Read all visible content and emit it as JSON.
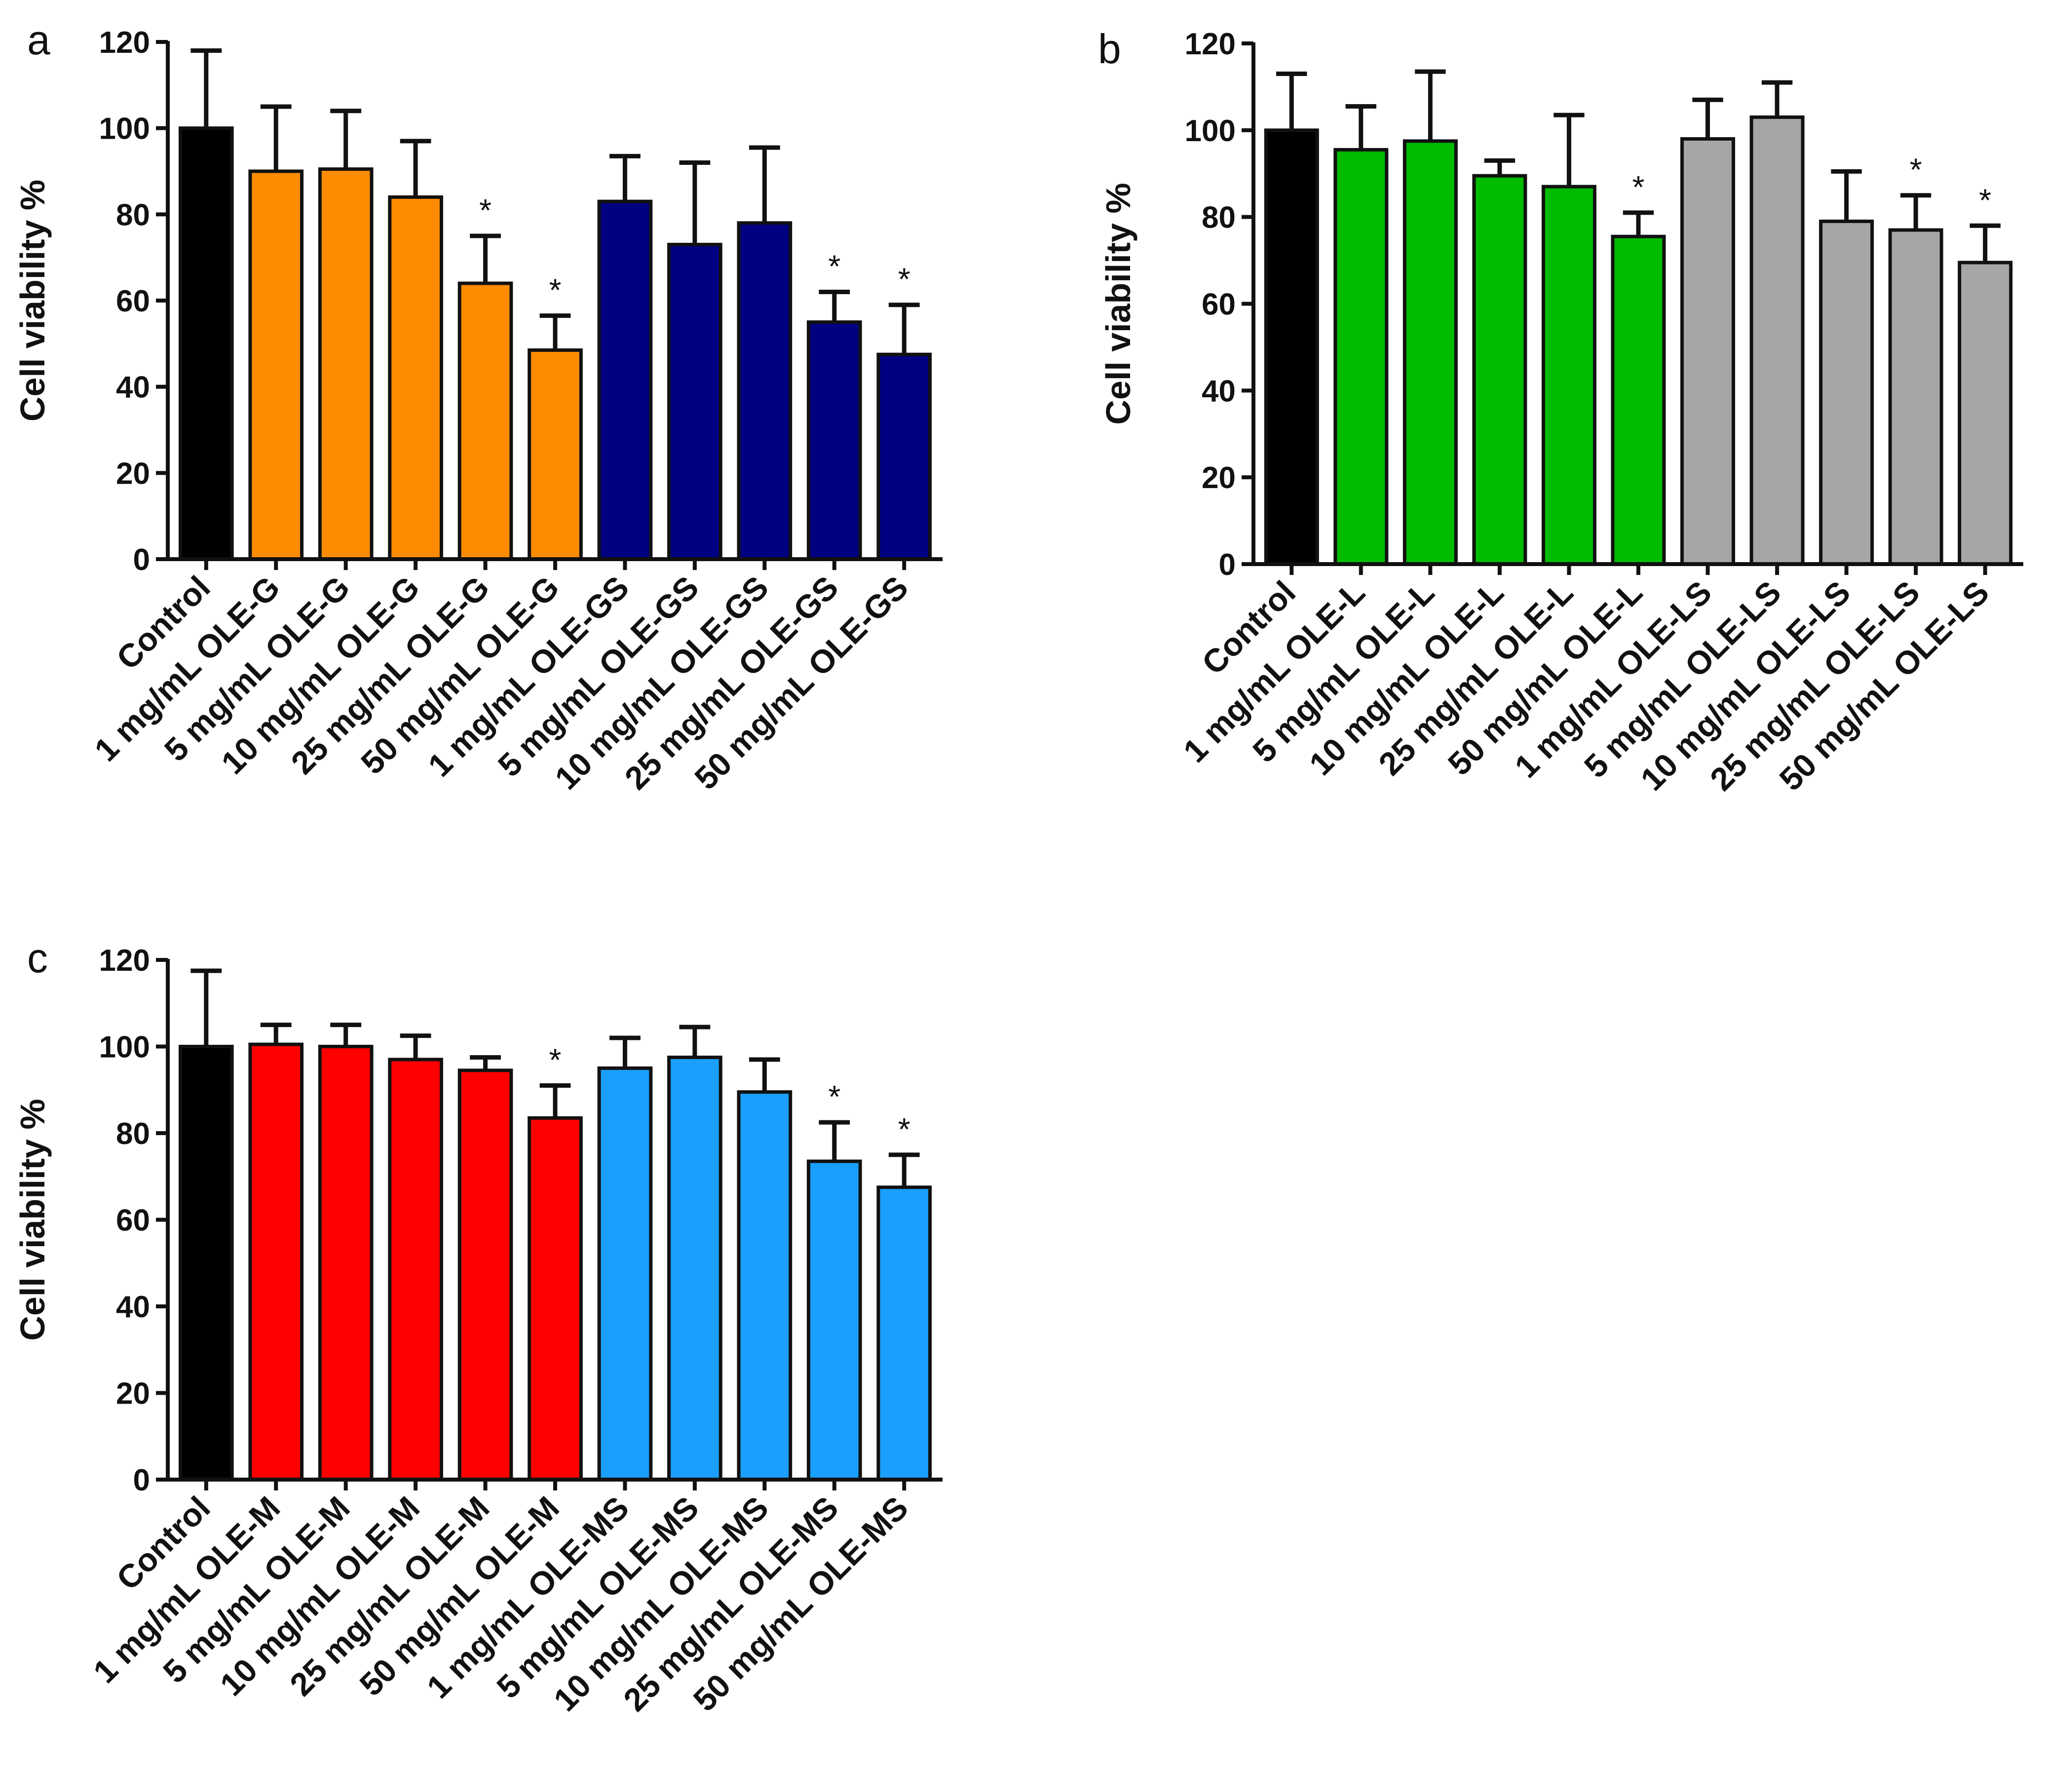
{
  "chart_data": [
    {
      "panel": "a",
      "type": "bar",
      "title": "",
      "xlabel": "",
      "ylabel": "Cell viability %",
      "ylim": [
        0,
        120
      ],
      "yticks": [
        "0",
        "20",
        "40",
        "60",
        "80",
        "100",
        "120"
      ],
      "grid": false,
      "categories": [
        "Control",
        "1 mg/mL OLE-G",
        "5 mg/mL OLE-G",
        "10 mg/mL OLE-G",
        "25 mg/mL OLE-G",
        "50 mg/mL OLE-G",
        "1 mg/mL OLE-GS",
        "5 mg/mL OLE-GS",
        "10 mg/mL OLE-GS",
        "25 mg/mL OLE-GS",
        "50 mg/mL OLE-GS"
      ],
      "values": [
        100,
        90,
        90.5,
        84,
        64,
        48.5,
        83,
        73,
        78,
        55,
        47.5
      ],
      "errors": [
        18,
        15,
        13.5,
        13,
        11,
        8,
        10.5,
        19,
        17.5,
        7,
        11.5
      ],
      "significant": [
        false,
        false,
        false,
        false,
        true,
        true,
        false,
        false,
        false,
        true,
        true
      ],
      "significance_marker": "*",
      "colors": [
        "#000000",
        "#ff8c00",
        "#ff8c00",
        "#ff8c00",
        "#ff8c00",
        "#ff8c00",
        "#000080",
        "#000080",
        "#000080",
        "#000080",
        "#000080"
      ]
    },
    {
      "panel": "b",
      "type": "bar",
      "title": "",
      "xlabel": "",
      "ylabel": "Cell viability %",
      "ylim": [
        0,
        120
      ],
      "yticks": [
        "0",
        "20",
        "40",
        "60",
        "80",
        "100",
        "120"
      ],
      "grid": false,
      "categories": [
        "Control",
        "1 mg/mL OLE-L",
        "5 mg/mL OLE-L",
        "10 mg/mL OLE-L",
        "25 mg/mL OLE-L",
        "50 mg/mL OLE-L",
        "1 mg/mL OLE-LS",
        "5 mg/mL OLE-LS",
        "10 mg/mL OLE-LS",
        "25 mg/mL OLE-LS",
        "50 mg/mL OLE-LS"
      ],
      "values": [
        100,
        95.5,
        97.5,
        89.5,
        87,
        75.5,
        98,
        103,
        79,
        77,
        69.5
      ],
      "errors": [
        13,
        10,
        16,
        3.5,
        16.5,
        5.5,
        9,
        8,
        11.5,
        8,
        8.5
      ],
      "significant": [
        false,
        false,
        false,
        false,
        false,
        true,
        false,
        false,
        false,
        true,
        true
      ],
      "significance_marker": "*",
      "colors": [
        "#000000",
        "#00bb00",
        "#00bb00",
        "#00bb00",
        "#00bb00",
        "#00bb00",
        "#a6a6a6",
        "#a6a6a6",
        "#a6a6a6",
        "#a6a6a6",
        "#a6a6a6"
      ]
    },
    {
      "panel": "c",
      "type": "bar",
      "title": "",
      "xlabel": "",
      "ylabel": "Cell viability %",
      "ylim": [
        0,
        120
      ],
      "yticks": [
        "0",
        "20",
        "40",
        "60",
        "80",
        "100",
        "120"
      ],
      "grid": false,
      "categories": [
        "Control",
        "1 mg/mL OLE-M",
        "5 mg/mL OLE-M",
        "10 mg/mL OLE-M",
        "25 mg/mL OLE-M",
        "50 mg/mL OLE-M",
        "1 mg/mL OLE-MS",
        "5 mg/mL OLE-MS",
        "10 mg/mL OLE-MS",
        "25 mg/mL OLE-MS",
        "50 mg/mL OLE-MS"
      ],
      "values": [
        100,
        100.5,
        100,
        97,
        94.5,
        83.5,
        95,
        97.5,
        89.5,
        73.5,
        67.5
      ],
      "errors": [
        17.5,
        4.5,
        5,
        5.5,
        3,
        7.5,
        7,
        7,
        7.5,
        9,
        7.5
      ],
      "significant": [
        false,
        false,
        false,
        false,
        false,
        true,
        false,
        false,
        false,
        true,
        true
      ],
      "significance_marker": "*",
      "colors": [
        "#000000",
        "#ff0000",
        "#ff0000",
        "#ff0000",
        "#ff0000",
        "#ff0000",
        "#1a9fff",
        "#1a9fff",
        "#1a9fff",
        "#1a9fff",
        "#1a9fff"
      ]
    }
  ]
}
